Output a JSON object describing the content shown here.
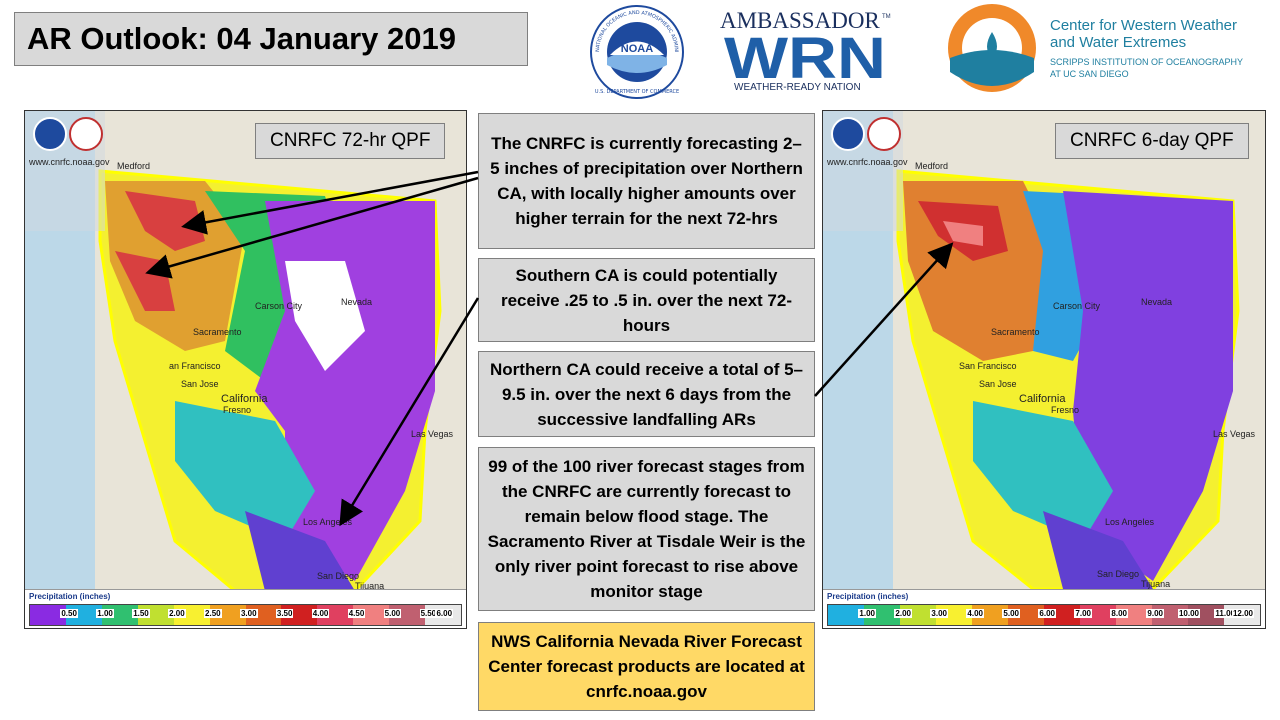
{
  "title": "AR Outlook: 04 January 2019",
  "logos": {
    "noaa_ring_text": "NATIONAL OCEANIC AND ATMOSPHERIC ADMINISTRATION",
    "noaa_bottom_text": "U.S. DEPARTMENT OF COMMERCE",
    "noaa_center": "NOAA",
    "ambassador": "AMBASSADOR",
    "tm": "TM",
    "wrn": "WRN",
    "wrn_sub": "WEATHER-READY NATION",
    "cw3e_name_line1": "Center for Western Weather",
    "cw3e_name_line2": "and Water Extremes",
    "cw3e_sub_line1": "SCRIPPS INSTITUTION OF OCEANOGRAPHY",
    "cw3e_sub_line2": "AT UC SAN DIEGO"
  },
  "left_map": {
    "label": "CNRFC 72-hr QPF",
    "url": "www.cnrfc.noaa.gov",
    "cities": {
      "medford": "Medford",
      "carson_city": "Carson City",
      "nevada": "Nevada",
      "sacramento": "Sacramento",
      "san_francisco": "an Francisco",
      "san_jose": "San Jose",
      "california": "California",
      "fresno": "Fresno",
      "las_vegas": "Las Vegas",
      "los_angeles": "Los Angeles",
      "san_diego": "San Diego",
      "tijuana": "Tijuana"
    },
    "legend_title": "Precipitation (inches)",
    "legend_ticks": [
      "0.50",
      "1.00",
      "1.50",
      "2.00",
      "2.50",
      "3.00",
      "3.50",
      "4.00",
      "4.50",
      "5.00",
      "5.50",
      "6.00"
    ]
  },
  "right_map": {
    "label": "CNRFC 6-day QPF",
    "url": "www.cnrfc.noaa.gov",
    "cities": {
      "medford": "Medford",
      "carson_city": "Carson City",
      "nevada": "Nevada",
      "sacramento": "Sacramento",
      "san_francisco": "San Francisco",
      "san_jose": "San Jose",
      "california": "California",
      "fresno": "Fresno",
      "las_vegas": "Las Vegas",
      "los_angeles": "Los Angeles",
      "san_diego": "San Diego",
      "tijuana": "Tijuana"
    },
    "legend_title": "Precipitation (inches)",
    "legend_ticks": [
      "1.00",
      "2.00",
      "3.00",
      "4.00",
      "5.00",
      "6.00",
      "7.00",
      "8.00",
      "9.00",
      "10.00",
      "11.00",
      "12.00"
    ]
  },
  "boxes": {
    "box1": "The CNRFC is currently forecasting 2–5 inches of precipitation over Northern CA, with locally higher amounts over higher terrain for the next 72-hrs",
    "box2": "Southern CA is could potentially receive .25 to .5 in. over the next 72-hours",
    "box3": "Northern CA could receive a total of 5–9.5 in. over the next 6 days from the successive landfalling ARs",
    "box4": "99 of the 100 river forecast stages from the CNRFC are currently forecast to remain below flood stage. The Sacramento River at Tisdale Weir is the only river point forecast to rise above monitor stage",
    "box5": "NWS California Nevada River Forecast Center forecast products are located at cnrfc.noaa.gov"
  },
  "colors": {
    "title_bg": "#d9d9d9",
    "box_bg": "#d9d9d9",
    "highlight_box_bg": "#ffd966",
    "noaa_blue": "#1e4a9e",
    "wrn_blue": "#1f5fa8",
    "cw3e_orange": "#f0892a",
    "cw3e_teal": "#1f7fa0"
  }
}
